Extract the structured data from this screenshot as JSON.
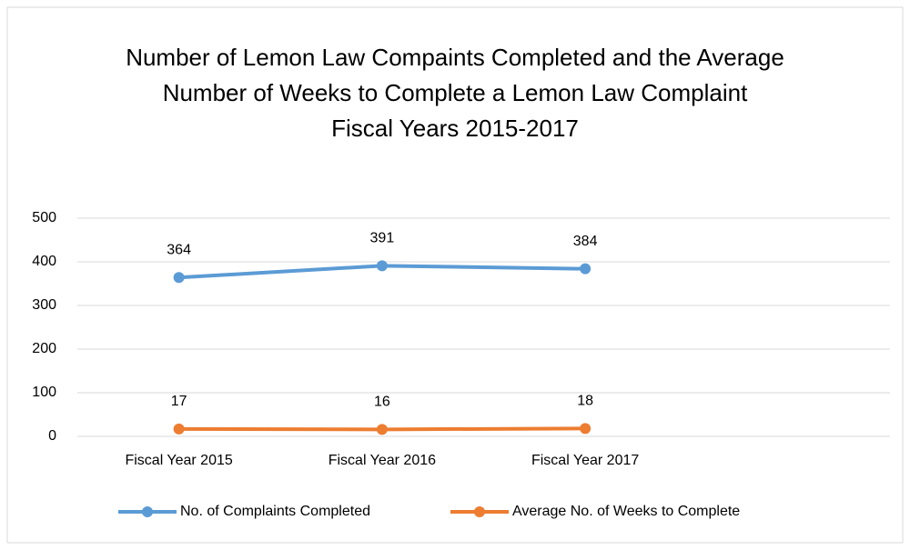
{
  "chart_data": {
    "type": "line",
    "title": "Number of Lemon Law Compaints Completed and the Average Number of Weeks to Complete a Lemon Law Complaint",
    "subtitle": "Fiscal Years 2015-2017",
    "categories": [
      "Fiscal Year 2015",
      "Fiscal Year 2016",
      "Fiscal Year 2017",
      null
    ],
    "series": [
      {
        "name": "No. of Complaints Completed",
        "color": "#5b9bd5",
        "values": [
          364,
          391,
          384,
          null
        ]
      },
      {
        "name": "Average No. of Weeks to Complete",
        "color": "#ed7d31",
        "values": [
          17,
          16,
          18,
          null
        ]
      }
    ],
    "ylim": [
      0,
      500
    ],
    "yticks": [
      0,
      100,
      200,
      300,
      400,
      500
    ],
    "grid": true,
    "legend": "bottom"
  }
}
